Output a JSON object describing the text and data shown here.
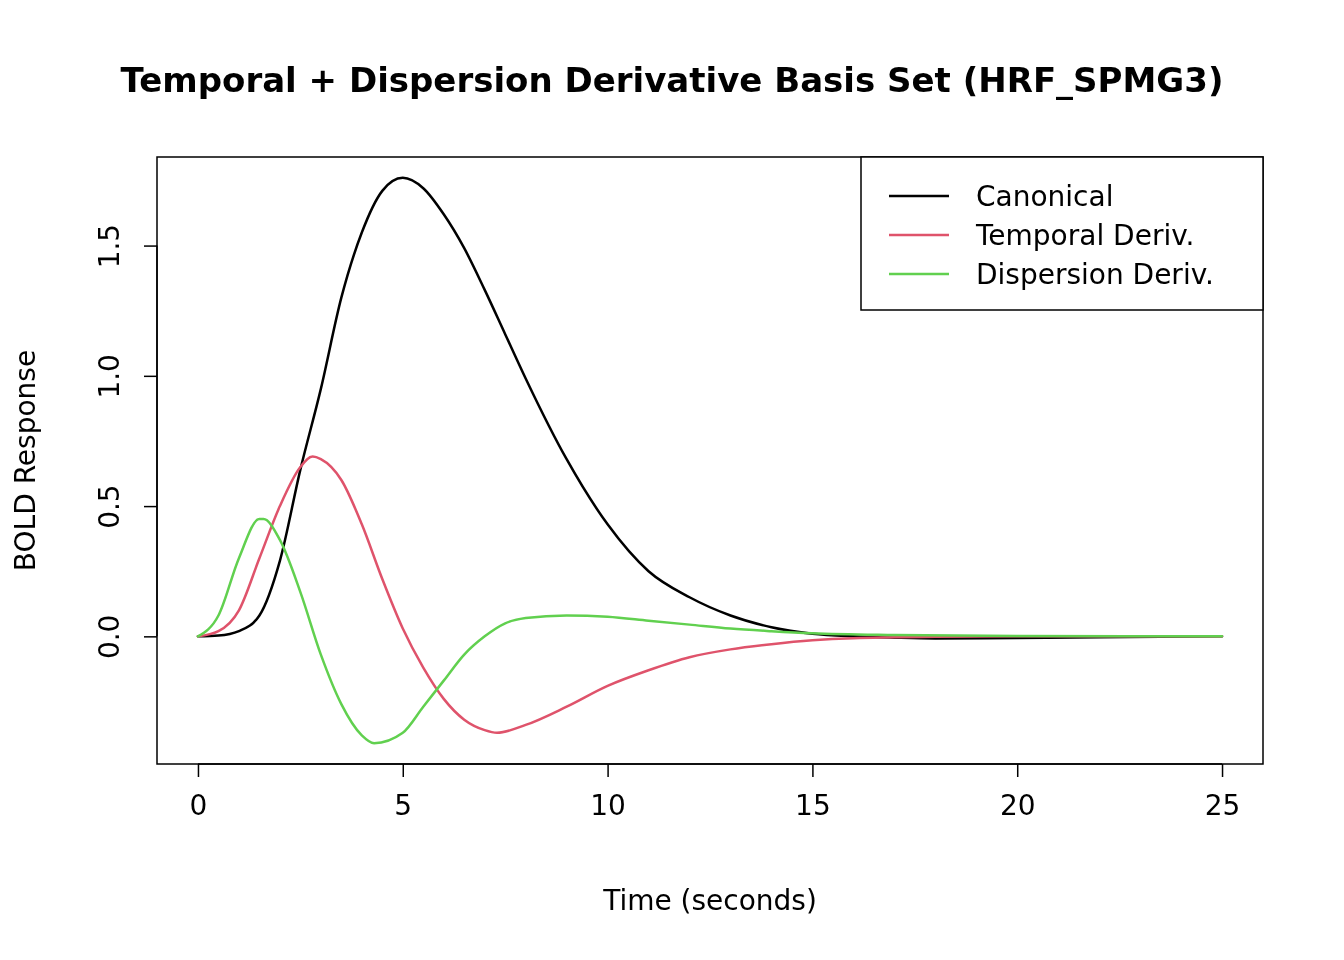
{
  "chart_data": {
    "type": "line",
    "title": "Temporal + Dispersion Derivative Basis Set (HRF_SPMG3)",
    "xlabel": "Time (seconds)",
    "ylabel": "BOLD Response",
    "xlim": [
      -1,
      26
    ],
    "ylim": [
      -0.49,
      1.84
    ],
    "xticks": [
      0,
      5,
      10,
      15,
      20,
      25
    ],
    "yticks": [
      {
        "value": 0,
        "label": "0.0"
      },
      0.5,
      {
        "value": 1,
        "label": "1.0"
      },
      1.5
    ],
    "grid": false,
    "legend": "top right",
    "line_style": "solid",
    "marker": "none",
    "series": [
      {
        "name": "Canonical",
        "color": "#000000",
        "x": [
          0,
          0.5,
          1,
          1.5,
          2,
          2.5,
          3,
          3.5,
          4,
          4.5,
          5,
          5.5,
          6,
          6.5,
          7,
          7.5,
          8,
          9,
          10,
          11,
          12,
          13,
          14,
          15,
          16,
          17,
          18,
          20,
          22,
          25
        ],
        "values": [
          0,
          0.003,
          0.02,
          0.08,
          0.29,
          0.64,
          0.95,
          1.3,
          1.55,
          1.71,
          1.76,
          1.72,
          1.62,
          1.49,
          1.33,
          1.16,
          0.99,
          0.68,
          0.43,
          0.25,
          0.15,
          0.08,
          0.035,
          0.01,
          0,
          -0.005,
          -0.008,
          -0.006,
          -0.003,
          0
        ]
      },
      {
        "name": "Temporal Deriv.",
        "color": "#df536b",
        "x": [
          0,
          0.5,
          1,
          1.5,
          2,
          2.5,
          2.8,
          3,
          3.5,
          4,
          4.5,
          5,
          5.5,
          6,
          6.5,
          7,
          7.3,
          8,
          9,
          10,
          11,
          12,
          13,
          14,
          15,
          16,
          18,
          20,
          25
        ],
        "values": [
          0,
          0.02,
          0.1,
          0.3,
          0.5,
          0.65,
          0.69,
          0.68,
          0.6,
          0.43,
          0.22,
          0.03,
          -0.12,
          -0.24,
          -0.32,
          -0.36,
          -0.37,
          -0.34,
          -0.27,
          -0.19,
          -0.13,
          -0.08,
          -0.05,
          -0.03,
          -0.015,
          -0.007,
          -0.002,
          0,
          0
        ]
      },
      {
        "name": "Dispersion Deriv.",
        "color": "#61d04f",
        "x": [
          0,
          0.5,
          1,
          1.5,
          1.6,
          2,
          2.5,
          3,
          3.5,
          4,
          4.3,
          5,
          5.5,
          6,
          6.5,
          7,
          7.5,
          8,
          9,
          10,
          11,
          12,
          13,
          14,
          15,
          17,
          20,
          25
        ],
        "values": [
          0,
          0.08,
          0.3,
          0.45,
          0.45,
          0.37,
          0.17,
          -0.07,
          -0.26,
          -0.38,
          -0.41,
          -0.37,
          -0.27,
          -0.17,
          -0.07,
          0,
          0.05,
          0.07,
          0.08,
          0.075,
          0.06,
          0.045,
          0.03,
          0.02,
          0.012,
          0.005,
          0.001,
          0
        ]
      }
    ]
  }
}
